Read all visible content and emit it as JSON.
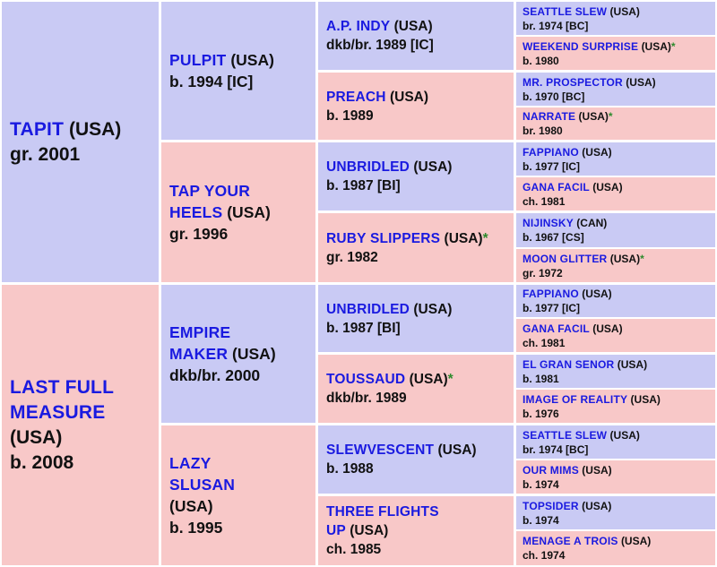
{
  "pedigree": {
    "gen1": [
      {
        "name": "TAPIT",
        "country": "(USA)",
        "star": "",
        "info": "gr. 2001"
      },
      {
        "name": "LAST FULL MEASURE",
        "country": "(USA)",
        "star": "",
        "info": "b. 2008"
      }
    ],
    "gen2": [
      {
        "name": "PULPIT",
        "country": "(USA)",
        "star": "",
        "info": "b. 1994 [IC]"
      },
      {
        "name": "TAP YOUR HEELS",
        "country": "(USA)",
        "star": "",
        "info": "gr. 1996"
      },
      {
        "name": "EMPIRE MAKER",
        "country": "(USA)",
        "star": "",
        "info": "dkb/br. 2000"
      },
      {
        "name": "LAZY SLUSAN",
        "country": "(USA)",
        "star": "",
        "info": "b. 1995"
      }
    ],
    "gen3": [
      {
        "name": "A.P. INDY",
        "country": "(USA)",
        "star": "",
        "info": "dkb/br. 1989 [IC]"
      },
      {
        "name": "PREACH",
        "country": "(USA)",
        "star": "",
        "info": "b. 1989"
      },
      {
        "name": "UNBRIDLED",
        "country": "(USA)",
        "star": "",
        "info": "b. 1987 [BI]"
      },
      {
        "name": "RUBY SLIPPERS",
        "country": "(USA)",
        "star": "*",
        "info": "gr. 1982"
      },
      {
        "name": "UNBRIDLED",
        "country": "(USA)",
        "star": "",
        "info": "b. 1987 [BI]"
      },
      {
        "name": "TOUSSAUD",
        "country": "(USA)",
        "star": "*",
        "info": "dkb/br. 1989"
      },
      {
        "name": "SLEWVESCENT",
        "country": "(USA)",
        "star": "",
        "info": "b. 1988"
      },
      {
        "name": "THREE FLIGHTS UP",
        "country": "(USA)",
        "star": "",
        "info": "ch. 1985"
      }
    ],
    "gen4": [
      {
        "name": "SEATTLE SLEW",
        "country": "(USA)",
        "star": "",
        "info": "br. 1974 [BC]"
      },
      {
        "name": "WEEKEND SURPRISE",
        "country": "(USA)",
        "star": "*",
        "info": "b. 1980"
      },
      {
        "name": "MR. PROSPECTOR",
        "country": "(USA)",
        "star": "",
        "info": "b. 1970 [BC]"
      },
      {
        "name": "NARRATE",
        "country": "(USA)",
        "star": "*",
        "info": "br. 1980"
      },
      {
        "name": "FAPPIANO",
        "country": "(USA)",
        "star": "",
        "info": "b. 1977 [IC]"
      },
      {
        "name": "GANA FACIL",
        "country": "(USA)",
        "star": "",
        "info": "ch. 1981"
      },
      {
        "name": "NIJINSKY",
        "country": "(CAN)",
        "star": "",
        "info": "b. 1967 [CS]"
      },
      {
        "name": "MOON GLITTER",
        "country": "(USA)",
        "star": "*",
        "info": "gr. 1972"
      },
      {
        "name": "FAPPIANO",
        "country": "(USA)",
        "star": "",
        "info": "b. 1977 [IC]"
      },
      {
        "name": "GANA FACIL",
        "country": "(USA)",
        "star": "",
        "info": "ch. 1981"
      },
      {
        "name": "EL GRAN SENOR",
        "country": "(USA)",
        "star": "",
        "info": "b. 1981"
      },
      {
        "name": "IMAGE OF REALITY",
        "country": "(USA)",
        "star": "",
        "info": "b. 1976"
      },
      {
        "name": "SEATTLE SLEW",
        "country": "(USA)",
        "star": "",
        "info": "br. 1974 [BC]"
      },
      {
        "name": "OUR MIMS",
        "country": "(USA)",
        "star": "",
        "info": "b. 1974"
      },
      {
        "name": "TOPSIDER",
        "country": "(USA)",
        "star": "",
        "info": "b. 1974"
      },
      {
        "name": "MENAGE A TROIS",
        "country": "(USA)",
        "star": "",
        "info": "ch. 1974"
      }
    ]
  }
}
